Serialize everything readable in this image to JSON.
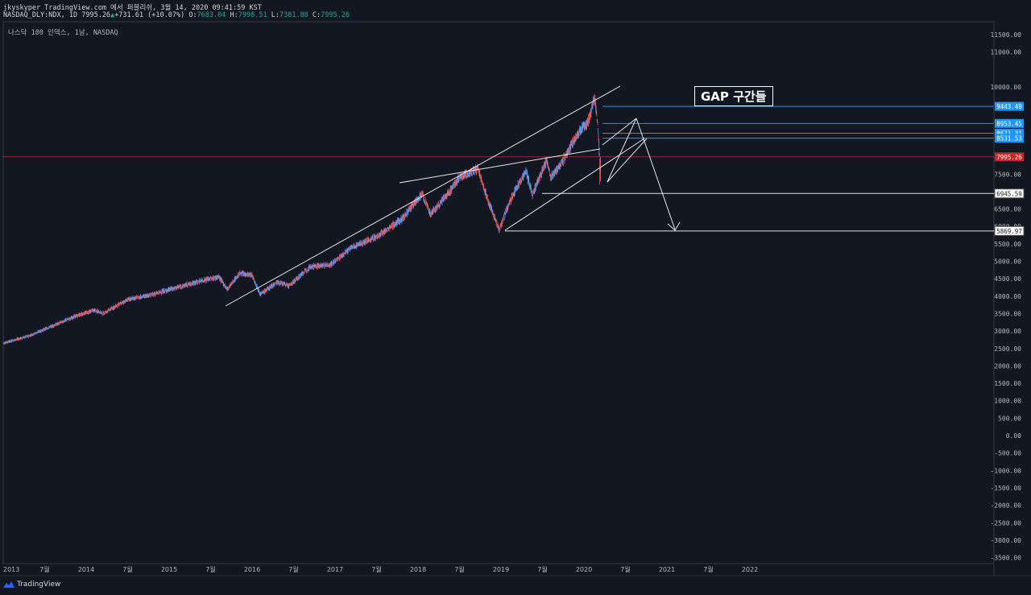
{
  "header": {
    "line1": "jkyskyper TradingView.com 에서 퍼블리쉬, 3월 14, 2020 09:41:59 KST",
    "symbol": "NASDAQ_DLY:NDX, 1D 7995.26",
    "change": "+731.61 (+10.07%)",
    "o_label": "O:",
    "o_value": "7683.04",
    "h_label": "H:",
    "h_value": "7998.51",
    "l_label": "L:",
    "l_value": "7301.88",
    "c_label": "C:",
    "c_value": "7995.26"
  },
  "subtitle": "나스닥 100 인덱스, 1날, NASDAQ",
  "annotation": "GAP 구간들",
  "footer": {
    "brand": "TradingView"
  },
  "colors": {
    "background": "#131722",
    "up": "#5b9cf6",
    "down": "#ef5350",
    "price_tag": "#c62828",
    "level_tag": "#2196f3"
  },
  "chart_data": {
    "type": "candlestick",
    "symbol": "NASDAQ_DLY:NDX",
    "interval": "1D",
    "ylim": [
      -3600,
      11700
    ],
    "y_ticks": [
      11500,
      11000,
      10000,
      9500,
      9000,
      8500,
      8000,
      7500,
      7000,
      6500,
      6000,
      5500,
      5000,
      4500,
      4000,
      3500,
      3000,
      2500,
      2000,
      1500,
      1000,
      500,
      0,
      -500,
      -1000,
      -1500,
      -2000,
      -2500,
      -3000,
      -3500
    ],
    "y_tick_labels": [
      "11500.00",
      "11000.00",
      "10000.00",
      "9500.00",
      "9000.00",
      "8500.00",
      "8000.00",
      "7500.00",
      "7000.00",
      "6500.00",
      "6000.00",
      "5500.00",
      "5000.00",
      "4500.00",
      "4000.00",
      "3500.00",
      "3000.00",
      "2500.00",
      "2000.00",
      "1500.00",
      "1000.00",
      "500.00",
      "0.00",
      "-500.00",
      "-1000.00",
      "-1500.00",
      "-2000.00",
      "-2500.00",
      "-3000.00",
      "-3500.00"
    ],
    "x_ticks": [
      {
        "label": "2013",
        "t": 2013.0
      },
      {
        "label": "7월",
        "t": 2013.5
      },
      {
        "label": "2014",
        "t": 2014.0
      },
      {
        "label": "7월",
        "t": 2014.5
      },
      {
        "label": "2015",
        "t": 2015.0
      },
      {
        "label": "7월",
        "t": 2015.5
      },
      {
        "label": "2016",
        "t": 2016.0
      },
      {
        "label": "7월",
        "t": 2016.5
      },
      {
        "label": "2017",
        "t": 2017.0
      },
      {
        "label": "7월",
        "t": 2017.5
      },
      {
        "label": "2018",
        "t": 2018.0
      },
      {
        "label": "7월",
        "t": 2018.5
      },
      {
        "label": "2019",
        "t": 2019.0
      },
      {
        "label": "7월",
        "t": 2019.5
      },
      {
        "label": "2020",
        "t": 2020.0
      },
      {
        "label": "7월",
        "t": 2020.5
      },
      {
        "label": "2021",
        "t": 2021.0
      },
      {
        "label": "7월",
        "t": 2021.5
      },
      {
        "label": "2022",
        "t": 2022.0
      }
    ],
    "price_path": [
      [
        2013.0,
        2650
      ],
      [
        2013.3,
        2850
      ],
      [
        2013.6,
        3150
      ],
      [
        2013.9,
        3450
      ],
      [
        2014.1,
        3600
      ],
      [
        2014.2,
        3500
      ],
      [
        2014.5,
        3900
      ],
      [
        2014.8,
        4050
      ],
      [
        2015.1,
        4250
      ],
      [
        2015.4,
        4450
      ],
      [
        2015.6,
        4550
      ],
      [
        2015.7,
        4200
      ],
      [
        2015.85,
        4650
      ],
      [
        2016.0,
        4600
      ],
      [
        2016.1,
        4050
      ],
      [
        2016.3,
        4400
      ],
      [
        2016.45,
        4300
      ],
      [
        2016.7,
        4850
      ],
      [
        2016.95,
        4900
      ],
      [
        2017.2,
        5400
      ],
      [
        2017.5,
        5700
      ],
      [
        2017.8,
        6200
      ],
      [
        2018.05,
        6950
      ],
      [
        2018.15,
        6350
      ],
      [
        2018.35,
        6900
      ],
      [
        2018.5,
        7400
      ],
      [
        2018.72,
        7650
      ],
      [
        2018.85,
        6700
      ],
      [
        2018.98,
        5900
      ],
      [
        2019.1,
        6700
      ],
      [
        2019.3,
        7600
      ],
      [
        2019.38,
        6900
      ],
      [
        2019.55,
        7900
      ],
      [
        2019.6,
        7400
      ],
      [
        2019.75,
        7900
      ],
      [
        2019.95,
        8750
      ],
      [
        2020.05,
        9000
      ],
      [
        2020.13,
        9700
      ],
      [
        2020.17,
        8800
      ],
      [
        2020.2,
        7300
      ],
      [
        2020.2,
        7995.26
      ]
    ],
    "horizontal_levels": [
      {
        "value": 9443.49,
        "label": "9443.49",
        "style": "gap"
      },
      {
        "value": 8953.45,
        "label": "8953.45",
        "style": "gap"
      },
      {
        "value": 8671.31,
        "label": "8671.31",
        "style": "gap"
      },
      {
        "value": 8531.53,
        "label": "8531.53",
        "style": "gap"
      },
      {
        "value": 7995.26,
        "label": "7995.26",
        "style": "last"
      },
      {
        "value": 6945.59,
        "label": "6945.59",
        "style": "support"
      },
      {
        "value": 5869.97,
        "label": "5869.97",
        "style": "support"
      }
    ],
    "last_price": 7995.26
  }
}
